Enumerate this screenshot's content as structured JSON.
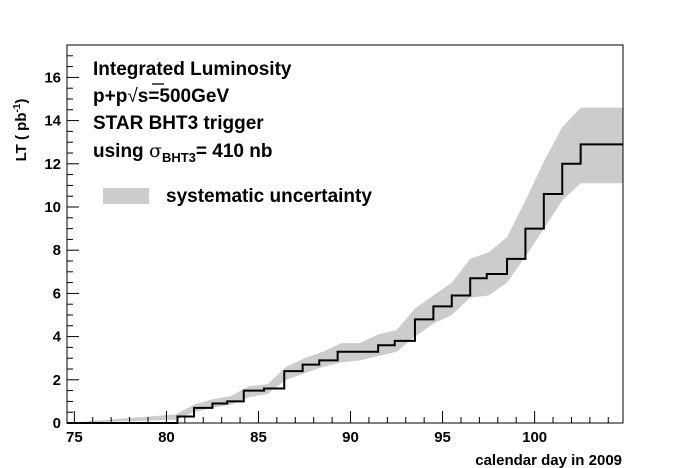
{
  "chart_data": {
    "type": "line",
    "title": "",
    "xlabel": "calendar day in 2009",
    "ylabel_main": "LT ( pb",
    "ylabel_sup": "-1",
    "ylabel_close": ")",
    "xlim": [
      74.6,
      104.8
    ],
    "ylim": [
      0,
      17.5
    ],
    "xticks": [
      75,
      80,
      85,
      90,
      95,
      100
    ],
    "yticks": [
      0,
      2,
      4,
      6,
      8,
      10,
      12,
      14,
      16
    ],
    "grid": false,
    "legend_position": "top-left",
    "series": [
      {
        "label": "",
        "style": "step",
        "color": "#000000",
        "x": [
          74.6,
          80.6,
          81.5,
          82.5,
          83.3,
          84.2,
          85.3,
          86.4,
          87.4,
          88.3,
          89.3,
          91.5,
          92.4,
          93.5,
          94.5,
          95.5,
          96.5,
          97.4,
          98.5,
          99.5,
          100.5,
          101.5,
          102.5,
          104.8
        ],
        "y": [
          0,
          0.3,
          0.7,
          0.9,
          1.0,
          1.5,
          1.6,
          2.4,
          2.7,
          2.9,
          3.3,
          3.6,
          3.8,
          4.8,
          5.4,
          5.9,
          6.7,
          6.9,
          7.6,
          9.0,
          10.6,
          12.0,
          12.9,
          12.9
        ]
      }
    ],
    "band": {
      "name": "systematic uncertainty",
      "color": "#cccccc",
      "x": [
        74.6,
        80.5,
        81.5,
        82.5,
        83.5,
        84.5,
        85.5,
        86.5,
        87.5,
        88.5,
        89.5,
        90.5,
        91.5,
        92.5,
        93.5,
        94.5,
        95.5,
        96.5,
        97.5,
        98.5,
        99.5,
        100.5,
        101.5,
        102.5,
        104.8
      ],
      "lower": [
        0,
        0.15,
        0.5,
        0.7,
        0.85,
        1.2,
        1.35,
        2.0,
        2.3,
        2.6,
        2.8,
        2.9,
        3.1,
        3.3,
        4.0,
        4.6,
        5.0,
        5.8,
        5.9,
        6.5,
        7.7,
        9.0,
        10.3,
        11.1,
        11.1
      ],
      "upper": [
        0,
        0.4,
        0.85,
        1.1,
        1.25,
        1.7,
        1.8,
        2.6,
        3.0,
        3.3,
        3.7,
        3.7,
        4.1,
        4.3,
        5.3,
        5.9,
        6.5,
        7.6,
        7.9,
        8.6,
        10.3,
        12.1,
        13.7,
        14.6,
        14.6
      ]
    },
    "annotations": {
      "line1": "Integrated Luminosity",
      "line2_prefix": "p+p",
      "line2_suffix": "s=500GeV",
      "line3": "STAR BHT3 trigger",
      "line4_prefix": "using ",
      "line4_sigma": "σ",
      "line4_sub": "BHT3",
      "line4_suffix": "= 410 nb"
    }
  }
}
